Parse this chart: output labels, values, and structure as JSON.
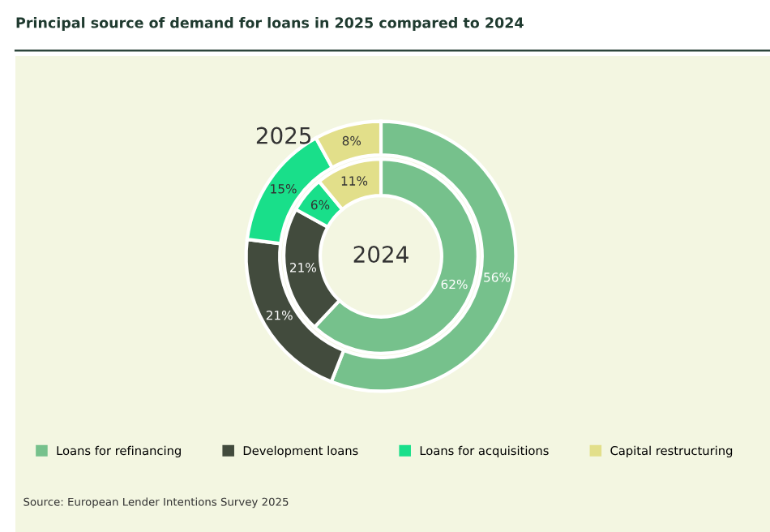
{
  "chart_data": {
    "type": "donut",
    "title": "Principal source of demand for loans in 2025 compared to 2024",
    "categories": [
      "Loans for refinancing",
      "Development loans",
      "Loans for acquisitions",
      "Capital restructuring"
    ],
    "series": [
      {
        "name": "2025",
        "values": [
          56,
          21,
          15,
          8
        ],
        "value_labels": [
          "56%",
          "21%",
          "15%",
          "8%"
        ],
        "colors": [
          "#76c18c",
          "#424b3d",
          "#19df8a",
          "#e2df8a"
        ]
      },
      {
        "name": "2024",
        "values": [
          62,
          21,
          6,
          11
        ],
        "value_labels": [
          "62%",
          "21%",
          "6%",
          "11%"
        ],
        "colors": [
          "#76c18c",
          "#424b3d",
          "#19df8a",
          "#e2df8a"
        ]
      }
    ],
    "legend": "bottom",
    "annotations": [
      "Source: European Lender Intentions Survey 2025"
    ]
  }
}
